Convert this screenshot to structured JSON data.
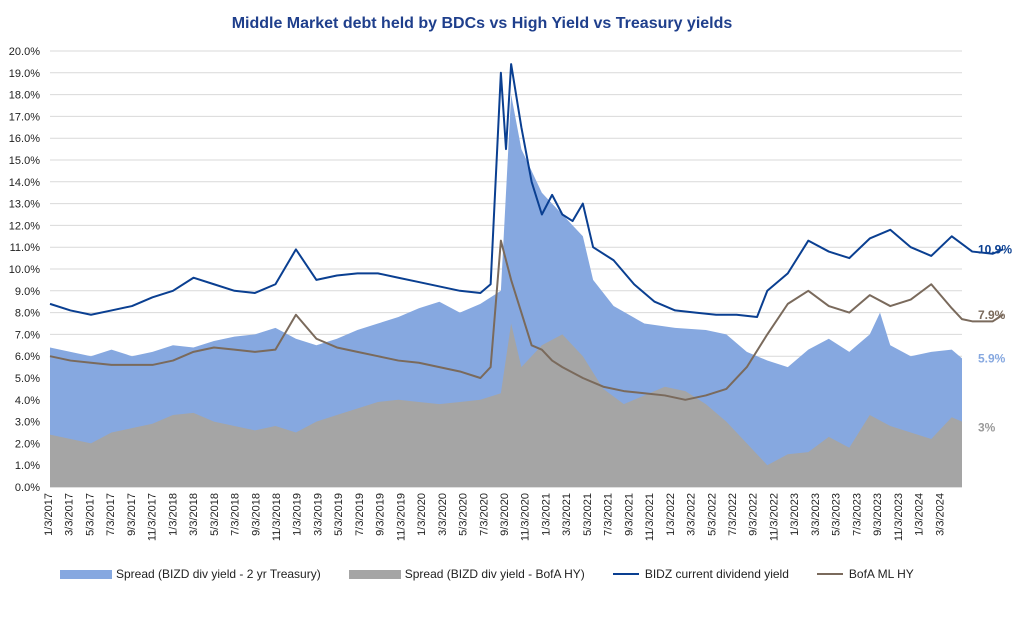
{
  "chart_data": {
    "type": "area",
    "title": "Middle Market debt held by BDCs vs High Yield vs Treasury yields",
    "xlabel": "",
    "ylabel": "",
    "ylim": [
      0,
      20
    ],
    "y_ticks": [
      "0.0%",
      "1.0%",
      "2.0%",
      "3.0%",
      "4.0%",
      "5.0%",
      "6.0%",
      "7.0%",
      "8.0%",
      "9.0%",
      "10.0%",
      "11.0%",
      "12.0%",
      "13.0%",
      "14.0%",
      "15.0%",
      "16.0%",
      "17.0%",
      "18.0%",
      "19.0%",
      "20.0%"
    ],
    "x_ticks": [
      "1/3/2017",
      "3/3/2017",
      "5/3/2017",
      "7/3/2017",
      "9/3/2017",
      "11/3/2017",
      "1/3/2018",
      "3/3/2018",
      "5/3/2018",
      "7/3/2018",
      "9/3/2018",
      "11/3/2018",
      "1/3/2019",
      "3/3/2019",
      "5/3/2019",
      "7/3/2019",
      "9/3/2019",
      "11/3/2019",
      "1/3/2020",
      "3/3/2020",
      "5/3/2020",
      "7/3/2020",
      "9/3/2020",
      "11/3/2020",
      "1/3/2021",
      "3/3/2021",
      "5/3/2021",
      "7/3/2021",
      "9/3/2021",
      "11/3/2021",
      "1/3/2022",
      "3/3/2022",
      "5/3/2022",
      "7/3/2022",
      "9/3/2022",
      "11/3/2022",
      "1/3/2023",
      "3/3/2023",
      "5/3/2023",
      "7/3/2023",
      "9/3/2023",
      "11/3/2023",
      "1/3/2024",
      "3/3/2024"
    ],
    "x_range": [
      0,
      89
    ],
    "grid": true,
    "legend_position": "bottom",
    "series": [
      {
        "name": "Spread (BIZD div yield - 2 yr Treasury)",
        "kind": "area",
        "color": "#86a8e0",
        "end_label": "5.9%",
        "values": [
          [
            0,
            6.4
          ],
          [
            2,
            6.2
          ],
          [
            4,
            6.0
          ],
          [
            6,
            6.3
          ],
          [
            8,
            6.0
          ],
          [
            10,
            6.2
          ],
          [
            12,
            6.5
          ],
          [
            14,
            6.4
          ],
          [
            16,
            6.7
          ],
          [
            18,
            6.9
          ],
          [
            20,
            7.0
          ],
          [
            22,
            7.3
          ],
          [
            24,
            6.8
          ],
          [
            26,
            6.5
          ],
          [
            28,
            6.8
          ],
          [
            30,
            7.2
          ],
          [
            32,
            7.5
          ],
          [
            34,
            7.8
          ],
          [
            36,
            8.2
          ],
          [
            38,
            8.5
          ],
          [
            40,
            8.0
          ],
          [
            42,
            8.4
          ],
          [
            44,
            9.0
          ],
          [
            45,
            18.0
          ],
          [
            46,
            15.5
          ],
          [
            48,
            13.5
          ],
          [
            50,
            12.5
          ],
          [
            52,
            11.5
          ],
          [
            53,
            9.5
          ],
          [
            55,
            8.3
          ],
          [
            58,
            7.5
          ],
          [
            61,
            7.3
          ],
          [
            64,
            7.2
          ],
          [
            66,
            7.0
          ],
          [
            68,
            6.2
          ],
          [
            70,
            5.8
          ],
          [
            72,
            5.5
          ],
          [
            74,
            6.3
          ],
          [
            76,
            6.8
          ],
          [
            78,
            6.2
          ],
          [
            80,
            7.0
          ],
          [
            81,
            8.0
          ],
          [
            82,
            6.5
          ],
          [
            84,
            6.0
          ],
          [
            86,
            6.2
          ],
          [
            88,
            6.3
          ],
          [
            89,
            5.9
          ]
        ]
      },
      {
        "name": "Spread (BIZD div yield - BofA HY)",
        "kind": "area",
        "color": "#a5a5a5",
        "end_label": "3%",
        "values": [
          [
            0,
            2.4
          ],
          [
            2,
            2.2
          ],
          [
            4,
            2.0
          ],
          [
            6,
            2.5
          ],
          [
            8,
            2.7
          ],
          [
            10,
            2.9
          ],
          [
            12,
            3.3
          ],
          [
            14,
            3.4
          ],
          [
            16,
            3.0
          ],
          [
            18,
            2.8
          ],
          [
            20,
            2.6
          ],
          [
            22,
            2.8
          ],
          [
            24,
            2.5
          ],
          [
            26,
            3.0
          ],
          [
            28,
            3.3
          ],
          [
            30,
            3.6
          ],
          [
            32,
            3.9
          ],
          [
            34,
            4.0
          ],
          [
            36,
            3.9
          ],
          [
            38,
            3.8
          ],
          [
            40,
            3.9
          ],
          [
            42,
            4.0
          ],
          [
            44,
            4.3
          ],
          [
            45,
            7.5
          ],
          [
            46,
            5.5
          ],
          [
            48,
            6.5
          ],
          [
            50,
            7.0
          ],
          [
            52,
            6.0
          ],
          [
            54,
            4.5
          ],
          [
            56,
            3.8
          ],
          [
            58,
            4.2
          ],
          [
            60,
            4.6
          ],
          [
            62,
            4.4
          ],
          [
            64,
            3.8
          ],
          [
            66,
            3.0
          ],
          [
            68,
            2.0
          ],
          [
            70,
            1.0
          ],
          [
            72,
            1.5
          ],
          [
            74,
            1.6
          ],
          [
            76,
            2.3
          ],
          [
            78,
            1.8
          ],
          [
            80,
            3.3
          ],
          [
            82,
            2.8
          ],
          [
            84,
            2.5
          ],
          [
            86,
            2.2
          ],
          [
            88,
            3.2
          ],
          [
            89,
            3.0
          ]
        ]
      },
      {
        "name": "BIDZ current dividend yield",
        "kind": "line",
        "color": "#0a3f91",
        "end_label": "10.9%",
        "values": [
          [
            0,
            8.4
          ],
          [
            2,
            8.1
          ],
          [
            4,
            7.9
          ],
          [
            6,
            8.1
          ],
          [
            8,
            8.3
          ],
          [
            10,
            8.7
          ],
          [
            12,
            9.0
          ],
          [
            14,
            9.6
          ],
          [
            16,
            9.3
          ],
          [
            18,
            9.0
          ],
          [
            20,
            8.9
          ],
          [
            22,
            9.3
          ],
          [
            24,
            10.9
          ],
          [
            26,
            9.5
          ],
          [
            28,
            9.7
          ],
          [
            30,
            9.8
          ],
          [
            32,
            9.8
          ],
          [
            34,
            9.6
          ],
          [
            36,
            9.4
          ],
          [
            38,
            9.2
          ],
          [
            40,
            9.0
          ],
          [
            42,
            8.9
          ],
          [
            43,
            9.3
          ],
          [
            44,
            19.0
          ],
          [
            44.5,
            15.5
          ],
          [
            45,
            19.4
          ],
          [
            46,
            16.5
          ],
          [
            47,
            14.0
          ],
          [
            48,
            12.5
          ],
          [
            49,
            13.4
          ],
          [
            50,
            12.5
          ],
          [
            51,
            12.2
          ],
          [
            52,
            13.0
          ],
          [
            53,
            11.0
          ],
          [
            55,
            10.4
          ],
          [
            57,
            9.3
          ],
          [
            59,
            8.5
          ],
          [
            61,
            8.1
          ],
          [
            63,
            8.0
          ],
          [
            65,
            7.9
          ],
          [
            67,
            7.9
          ],
          [
            69,
            7.8
          ],
          [
            70,
            9.0
          ],
          [
            72,
            9.8
          ],
          [
            74,
            11.3
          ],
          [
            76,
            10.8
          ],
          [
            78,
            10.5
          ],
          [
            80,
            11.4
          ],
          [
            82,
            11.8
          ],
          [
            84,
            11.0
          ],
          [
            86,
            10.6
          ],
          [
            88,
            11.5
          ],
          [
            90,
            10.8
          ],
          [
            92,
            10.7
          ],
          [
            93,
            10.9
          ]
        ]
      },
      {
        "name": "BofA ML HY",
        "kind": "line",
        "color": "#7a6a5c",
        "end_label": "7.9%",
        "values": [
          [
            0,
            6.0
          ],
          [
            2,
            5.8
          ],
          [
            4,
            5.7
          ],
          [
            6,
            5.6
          ],
          [
            8,
            5.6
          ],
          [
            10,
            5.6
          ],
          [
            12,
            5.8
          ],
          [
            14,
            6.2
          ],
          [
            16,
            6.4
          ],
          [
            18,
            6.3
          ],
          [
            20,
            6.2
          ],
          [
            22,
            6.3
          ],
          [
            24,
            7.9
          ],
          [
            26,
            6.8
          ],
          [
            28,
            6.4
          ],
          [
            30,
            6.2
          ],
          [
            32,
            6.0
          ],
          [
            34,
            5.8
          ],
          [
            36,
            5.7
          ],
          [
            38,
            5.5
          ],
          [
            40,
            5.3
          ],
          [
            42,
            5.0
          ],
          [
            43,
            5.5
          ],
          [
            44,
            11.3
          ],
          [
            45,
            9.5
          ],
          [
            46,
            8.0
          ],
          [
            47,
            6.5
          ],
          [
            48,
            6.3
          ],
          [
            49,
            5.8
          ],
          [
            50,
            5.5
          ],
          [
            52,
            5.0
          ],
          [
            54,
            4.6
          ],
          [
            56,
            4.4
          ],
          [
            58,
            4.3
          ],
          [
            60,
            4.2
          ],
          [
            62,
            4.0
          ],
          [
            64,
            4.2
          ],
          [
            66,
            4.5
          ],
          [
            68,
            5.5
          ],
          [
            70,
            7.0
          ],
          [
            72,
            8.4
          ],
          [
            74,
            9.0
          ],
          [
            76,
            8.3
          ],
          [
            78,
            8.0
          ],
          [
            80,
            8.8
          ],
          [
            82,
            8.3
          ],
          [
            84,
            8.6
          ],
          [
            86,
            9.3
          ],
          [
            88,
            8.2
          ],
          [
            89,
            7.7
          ],
          [
            90,
            7.6
          ],
          [
            92,
            7.6
          ],
          [
            93,
            7.9
          ]
        ]
      }
    ]
  }
}
